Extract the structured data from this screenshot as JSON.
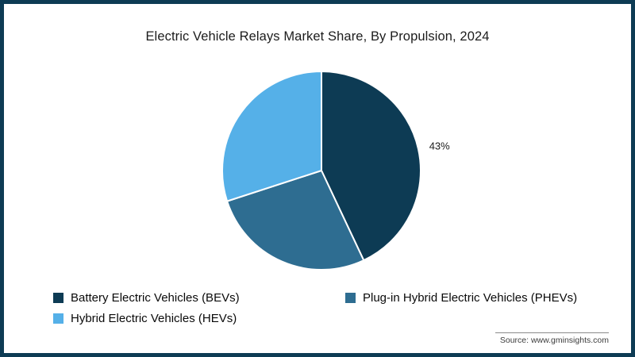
{
  "frame": {
    "border_color": "#0d3b54",
    "background": "#ffffff"
  },
  "chart_data": {
    "type": "pie",
    "title": "Electric Vehicle Relays Market Share, By Propulsion, 2024",
    "start_angle_deg": 0,
    "direction": "clockwise",
    "legend_position": "bottom",
    "slice_stroke_color": "#ffffff",
    "slices": [
      {
        "label": "Battery Electric Vehicles (BEVs)",
        "value": 43,
        "color": "#0d3b54",
        "data_label": "43%"
      },
      {
        "label": "Plug-in Hybrid Electric Vehicles (PHEVs)",
        "value": 27,
        "color": "#2e6d91",
        "data_label": ""
      },
      {
        "label": "Hybrid Electric Vehicles (HEVs)",
        "value": 30,
        "color": "#55b0e8",
        "data_label": ""
      }
    ]
  },
  "source": {
    "text": "Source: www.gminsights.com"
  }
}
